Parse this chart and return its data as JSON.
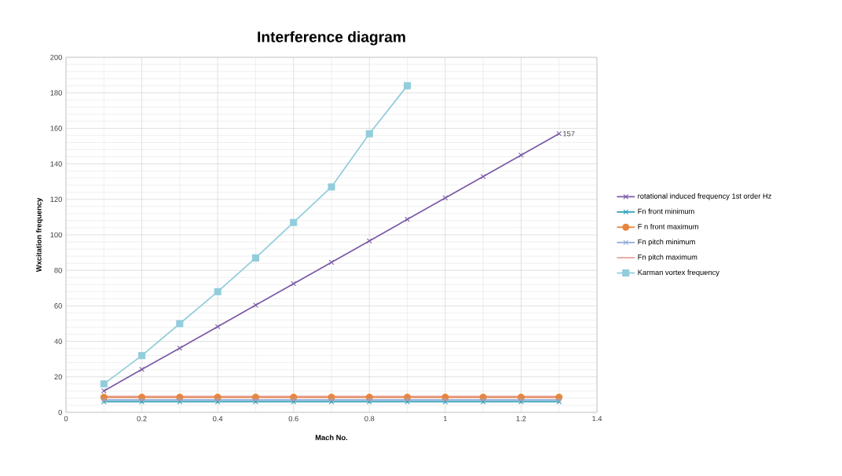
{
  "chart_data": {
    "type": "line",
    "title": "Interference diagram",
    "xlabel": "Mach No.",
    "ylabel": "Wxcitation frequency",
    "x": [
      0.1,
      0.2,
      0.3,
      0.4,
      0.5,
      0.6,
      0.7,
      0.8,
      0.9,
      1.0,
      1.1,
      1.2,
      1.3
    ],
    "series": [
      {
        "name": "rotational induced frequency 1st order Hz",
        "color": "#7a5ba8",
        "marker": "cross",
        "values": [
          12.1,
          24.2,
          36.2,
          48.3,
          60.4,
          72.5,
          84.5,
          96.6,
          108.7,
          120.8,
          132.8,
          144.9,
          157
        ],
        "value_labels": [
          null,
          null,
          null,
          null,
          null,
          null,
          null,
          null,
          null,
          null,
          null,
          null,
          "157"
        ]
      },
      {
        "name": "Fn front minimum",
        "color": "#2a9db5",
        "marker": "cross",
        "values": [
          6,
          6,
          6,
          6,
          6,
          6,
          6,
          6,
          6,
          6,
          6,
          6,
          6
        ]
      },
      {
        "name": "F n front maximum",
        "color": "#e8843c",
        "marker": "circle",
        "values": [
          8.5,
          8.5,
          8.5,
          8.5,
          8.5,
          8.5,
          8.5,
          8.5,
          8.5,
          8.5,
          8.5,
          8.5,
          8.5
        ]
      },
      {
        "name": "Fn pitch minimum",
        "color": "#8eaadb",
        "marker": "cross",
        "values": [
          7,
          7,
          7,
          7,
          7,
          7,
          7,
          7,
          7,
          7,
          7,
          7,
          7
        ]
      },
      {
        "name": "Fn pitch maximum",
        "color": "#e6a19a",
        "marker": "none",
        "values": [
          9,
          9,
          9,
          9,
          9,
          9,
          9,
          9,
          9,
          9,
          9,
          9,
          9
        ]
      },
      {
        "name": "Karman vortex frequency",
        "color": "#92cddc",
        "marker": "square",
        "x": [
          0.1,
          0.2,
          0.3,
          0.4,
          0.5,
          0.6,
          0.7,
          0.8,
          0.9
        ],
        "values": [
          16,
          32,
          50,
          68,
          87,
          107,
          127,
          157,
          184
        ]
      }
    ],
    "xlim": [
      0,
      1.4
    ],
    "ylim": [
      0,
      200
    ],
    "xticks": [
      0,
      0.2,
      0.4,
      0.6,
      0.8,
      1,
      1.2,
      1.4
    ],
    "yticks": [
      0,
      20,
      40,
      60,
      80,
      100,
      120,
      140,
      160,
      180,
      200
    ],
    "grid": true,
    "legend": "right",
    "line_style": "solid"
  }
}
